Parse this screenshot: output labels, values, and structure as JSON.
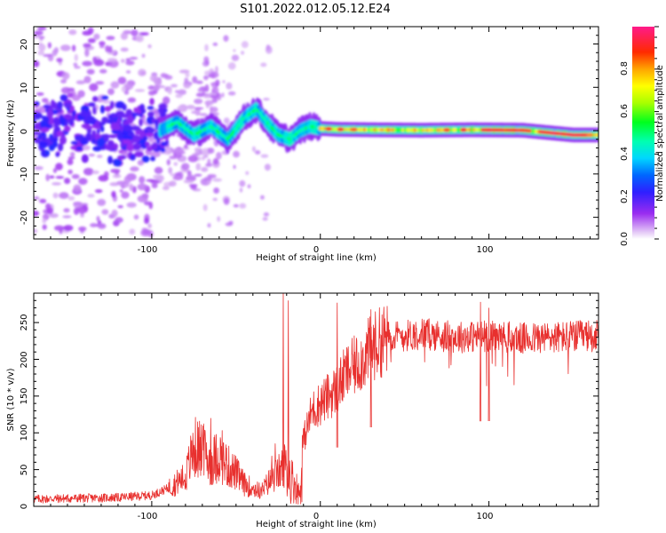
{
  "figure_title": "S101.2022.012.05.12.E24",
  "colors": {
    "snr_line": "#e8302e",
    "axis": "#000000"
  },
  "chart_data": [
    {
      "type": "heatmap",
      "title": "S101.2022.012.05.12.E24",
      "xlabel": "Height of straight line (km)",
      "ylabel": "Frequency (Hz)",
      "xlim": [
        -170,
        165
      ],
      "ylim": [
        -25,
        24
      ],
      "x_ticks": [
        -100,
        0,
        100
      ],
      "y_ticks": [
        -20,
        -10,
        0,
        10,
        20
      ],
      "grid": false,
      "colorbar": {
        "label": "Normalized spectral amplitude",
        "range": [
          0,
          1
        ],
        "ticks": [
          "0.0",
          "0.2",
          "0.4",
          "0.6",
          "0.8"
        ],
        "colormap": "rainbow (white-lavender → violet → blue → cyan → green → yellow → orange → red → magenta)"
      },
      "ridge": {
        "description": "dominant frequency track vs height",
        "x": [
          -95,
          -85,
          -75,
          -65,
          -55,
          -45,
          -38,
          -32,
          -25,
          -18,
          -12,
          -6,
          0,
          10,
          30,
          60,
          90,
          120,
          150,
          165
        ],
        "y": [
          0,
          2,
          -1,
          1,
          -2,
          3,
          5,
          2,
          -1,
          -2,
          0,
          1,
          0.5,
          0.3,
          0.2,
          0.1,
          0.2,
          0.1,
          -1,
          -1
        ]
      },
      "noise_region_x": [
        -170,
        -90
      ]
    },
    {
      "type": "line",
      "xlabel": "Height of straight line (km)",
      "ylabel": "SNR (10 * v/v)",
      "xlim": [
        -170,
        165
      ],
      "ylim": [
        0,
        290
      ],
      "x_ticks": [
        -100,
        0,
        100
      ],
      "y_ticks": [
        0,
        50,
        100,
        150,
        200,
        250
      ],
      "grid": false,
      "series": [
        {
          "envelope_x": [
            -170,
            -120,
            -100,
            -90,
            -80,
            -75,
            -70,
            -65,
            -60,
            -55,
            -50,
            -45,
            -40,
            -35,
            -30,
            -25,
            -22,
            -20,
            -18,
            -15,
            -12,
            -10,
            -5,
            0,
            5,
            10,
            15,
            20,
            25,
            30,
            40,
            50,
            60,
            80,
            100,
            120,
            140,
            165
          ],
          "envelope_y": [
            10,
            12,
            15,
            25,
            40,
            80,
            75,
            60,
            70,
            55,
            45,
            30,
            25,
            20,
            35,
            45,
            55,
            60,
            40,
            30,
            15,
            90,
            130,
            140,
            150,
            160,
            180,
            190,
            200,
            215,
            230,
            232,
            235,
            230,
            232,
            228,
            230,
            232
          ],
          "spikes": [
            {
              "x": -65,
              "y": 120
            },
            {
              "x": -22,
              "y": 290
            },
            {
              "x": -19,
              "y": 280
            },
            {
              "x": 10,
              "y": 277
            },
            {
              "x": 30,
              "y": 268
            },
            {
              "x": 95,
              "y": 278
            },
            {
              "x": 100,
              "y": 270
            }
          ]
        }
      ]
    }
  ]
}
